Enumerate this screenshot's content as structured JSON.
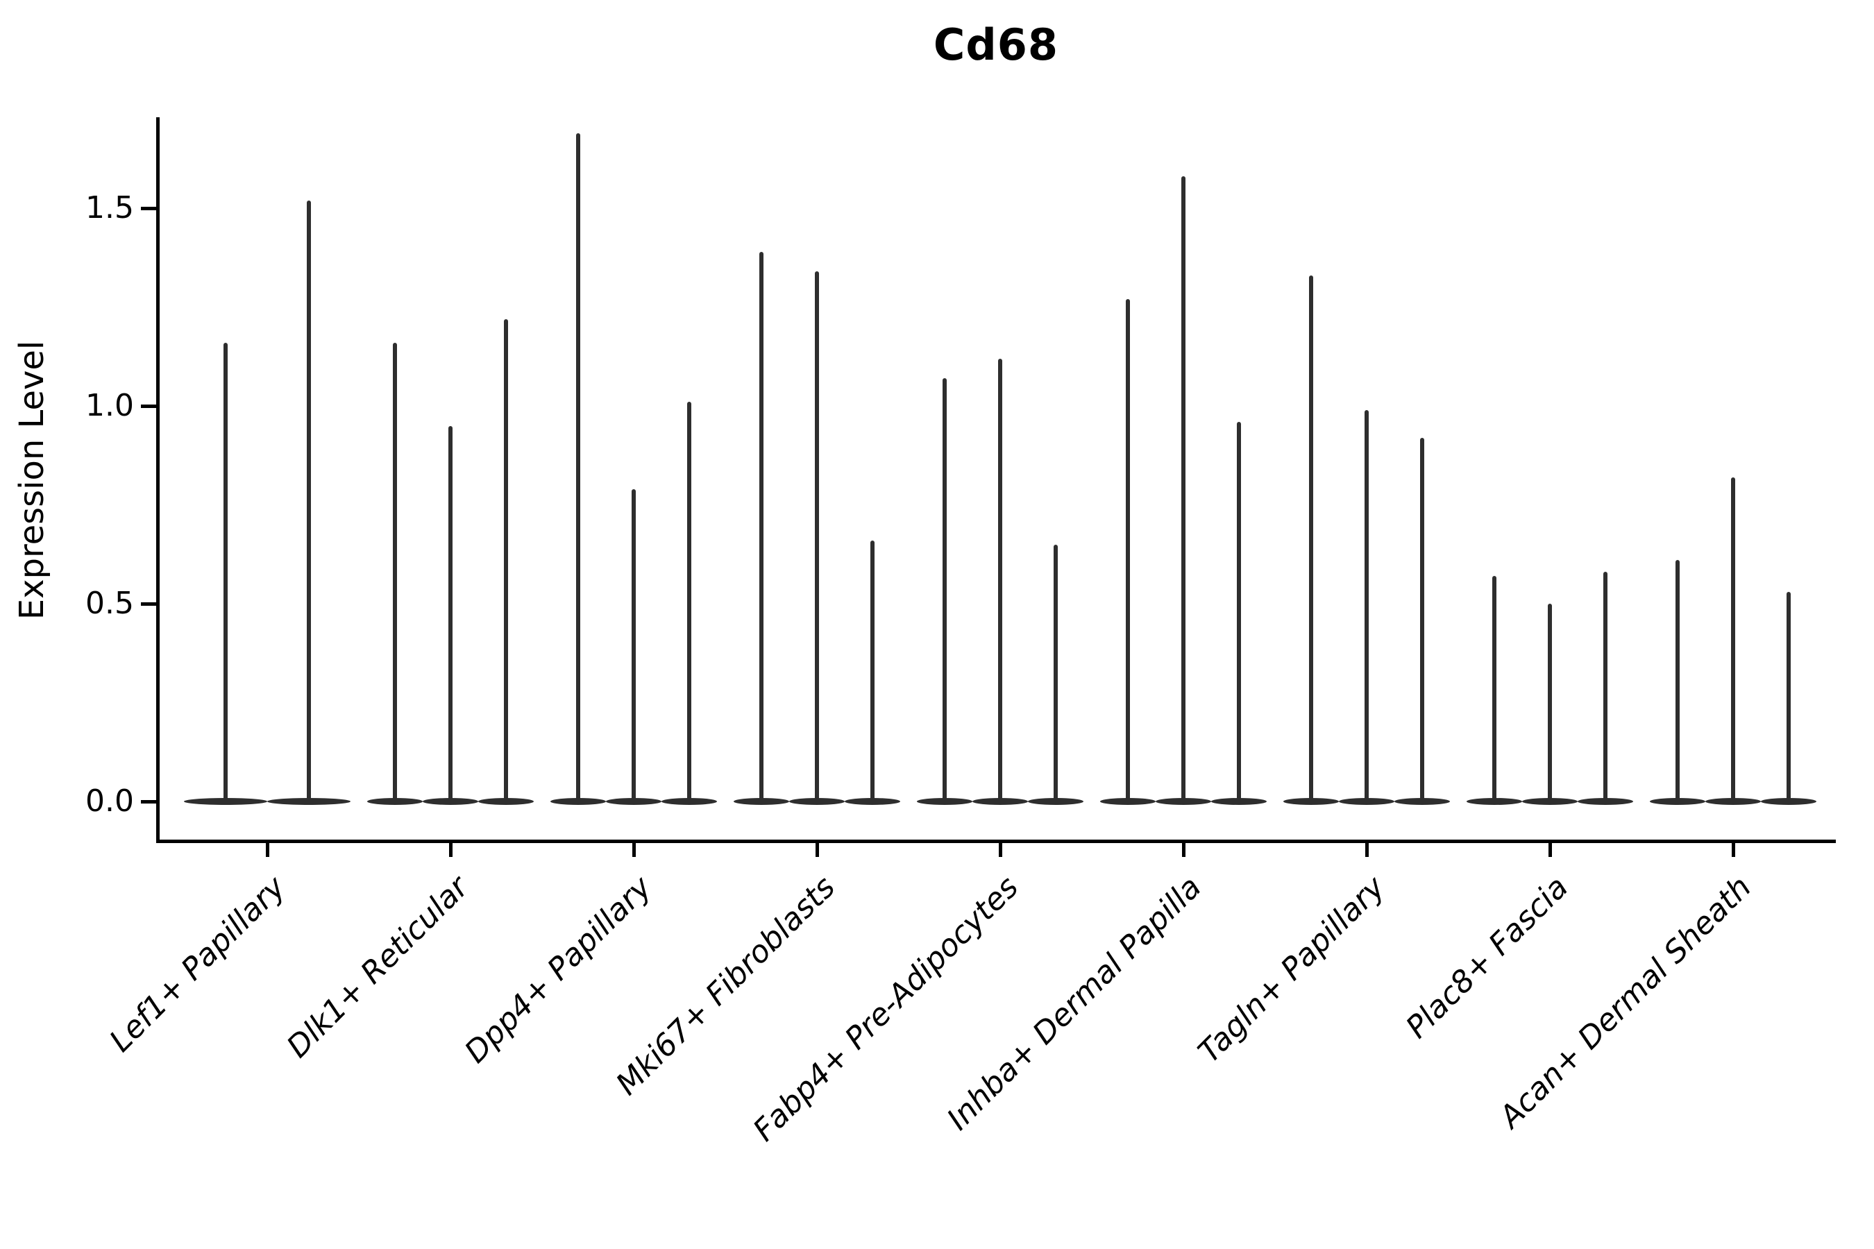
{
  "chart_data": {
    "type": "violin",
    "title": "Cd68",
    "xlabel": "",
    "ylabel": "Expression Level",
    "yticks": [
      {
        "label": "0.0",
        "value": 0.0
      },
      {
        "label": "0.5",
        "value": 0.5
      },
      {
        "label": "1.0",
        "value": 1.0
      },
      {
        "label": "1.5",
        "value": 1.5
      }
    ],
    "ylim": [
      -0.1,
      1.73
    ],
    "grid": false,
    "legend": false,
    "violin_color": "#2e2e2e",
    "axis_color": "#000000",
    "categories": [
      "Lef1+ Papillary",
      "Dlk1+ Reticular",
      "Dpp4+ Papillary",
      "Mki67+ Fibroblasts",
      "Fabp4+ Pre-Adipocytes",
      "Inhba+ Dermal Papilla",
      "Tagln+ Papillary",
      "Plac8+ Fascia",
      "Acan+ Dermal Sheath"
    ],
    "groups": [
      {
        "category": "Lef1+ Papillary",
        "spike_peaks": [
          1.16,
          1.52
        ]
      },
      {
        "category": "Dlk1+ Reticular",
        "spike_peaks": [
          1.16,
          0.95,
          1.22
        ]
      },
      {
        "category": "Dpp4+ Papillary",
        "spike_peaks": [
          1.69,
          0.79,
          1.01
        ]
      },
      {
        "category": "Mki67+ Fibroblasts",
        "spike_peaks": [
          1.39,
          1.34,
          0.66
        ]
      },
      {
        "category": "Fabp4+ Pre-Adipocytes",
        "spike_peaks": [
          1.07,
          1.12,
          0.65
        ]
      },
      {
        "category": "Inhba+ Dermal Papilla",
        "spike_peaks": [
          1.27,
          1.58,
          0.96
        ]
      },
      {
        "category": "Tagln+ Papillary",
        "spike_peaks": [
          1.33,
          0.99,
          0.92
        ]
      },
      {
        "category": "Plac8+ Fascia",
        "spike_peaks": [
          0.57,
          0.5,
          0.58
        ]
      },
      {
        "category": "Acan+ Dermal Sheath",
        "spike_peaks": [
          0.61,
          0.82,
          0.53
        ]
      }
    ]
  }
}
